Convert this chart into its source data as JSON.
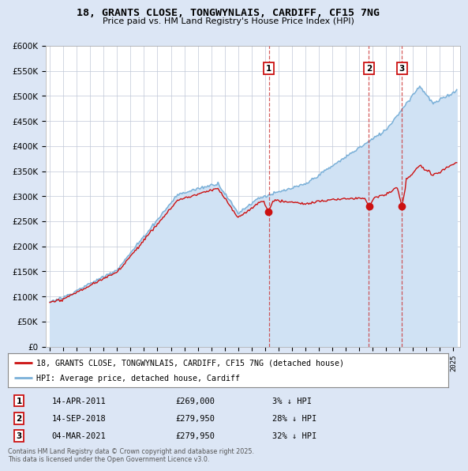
{
  "title": "18, GRANTS CLOSE, TONGWYNLAIS, CARDIFF, CF15 7NG",
  "subtitle": "Price paid vs. HM Land Registry's House Price Index (HPI)",
  "ylim": [
    0,
    600000
  ],
  "yticks": [
    0,
    50000,
    100000,
    150000,
    200000,
    250000,
    300000,
    350000,
    400000,
    450000,
    500000,
    550000,
    600000
  ],
  "xlim_start": 1994.7,
  "xlim_end": 2025.5,
  "background_color": "#dce6f5",
  "plot_bg_color": "#ffffff",
  "grid_color": "#c0c8d8",
  "hpi_color": "#7ab0d8",
  "hpi_fill_color": "#d0e2f4",
  "price_color": "#cc1111",
  "transactions": [
    {
      "label": "1",
      "date_num": 2011.29,
      "price": 269000
    },
    {
      "label": "2",
      "date_num": 2018.71,
      "price": 279950
    },
    {
      "label": "3",
      "date_num": 2021.17,
      "price": 279950
    }
  ],
  "transaction_details": [
    {
      "num": "1",
      "date": "14-APR-2011",
      "price": "£269,000",
      "note": "3% ↓ HPI"
    },
    {
      "num": "2",
      "date": "14-SEP-2018",
      "price": "£279,950",
      "note": "28% ↓ HPI"
    },
    {
      "num": "3",
      "date": "04-MAR-2021",
      "price": "£279,950",
      "note": "32% ↓ HPI"
    }
  ],
  "legend_property_label": "18, GRANTS CLOSE, TONGWYNLAIS, CARDIFF, CF15 7NG (detached house)",
  "legend_hpi_label": "HPI: Average price, detached house, Cardiff",
  "footer": "Contains HM Land Registry data © Crown copyright and database right 2025.\nThis data is licensed under the Open Government Licence v3.0."
}
